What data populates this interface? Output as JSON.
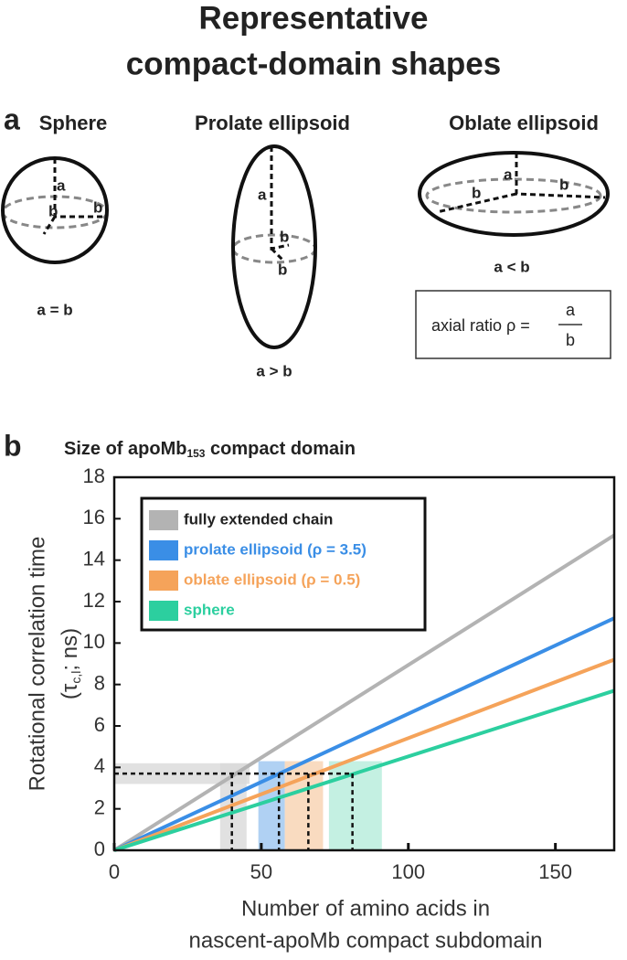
{
  "title": [
    "Representative",
    "compact-domain shapes"
  ],
  "panel_a": {
    "label": "a",
    "shapes": [
      {
        "name": "Sphere",
        "caption": "a = b"
      },
      {
        "name": "Prolate ellipsoid",
        "caption": "a > b"
      },
      {
        "name": "Oblate ellipsoid",
        "caption": "a < b"
      }
    ],
    "dimension_a": "a",
    "dimension_b": "b",
    "ratio_box": {
      "text": "axial ratio ρ =",
      "numerator": "a",
      "denominator": "b"
    }
  },
  "panel_b_label": "b",
  "chart_data": {
    "type": "line",
    "title": [
      "Size of apoMb",
      "153",
      " compact domain"
    ],
    "xlabel": [
      "Number of amino acids in",
      "nascent-apoMb compact subdomain"
    ],
    "ylabel": "Rotational correlation time",
    "ylabel_unit": [
      "(τ",
      "c,l",
      "; ns)"
    ],
    "x": [
      0,
      170
    ],
    "series": [
      {
        "name": "fully extended chain",
        "color": "#b3b3b3",
        "label_color": "#222222",
        "values": [
          0,
          15.2
        ]
      },
      {
        "name": "prolate ellipsoid (ρ = 3.5)",
        "color": "#3a8ee6",
        "label_color": "#3a8ee6",
        "values": [
          0,
          11.2
        ]
      },
      {
        "name": "oblate ellipsoid (ρ = 0.5)",
        "color": "#f5a35a",
        "label_color": "#f5a35a",
        "values": [
          0,
          9.2
        ]
      },
      {
        "name": "sphere",
        "color": "#2ccf9f",
        "label_color": "#2ccf9f",
        "values": [
          0,
          7.7
        ]
      }
    ],
    "bands": [
      {
        "x": [
          0,
          46
        ],
        "y": [
          3.2,
          4.2
        ],
        "color": "#d9d9d9"
      },
      {
        "x": [
          36,
          45
        ],
        "y": [
          0,
          4.2
        ],
        "color": "#d9d9d9"
      },
      {
        "x": [
          49,
          58
        ],
        "y": [
          0,
          4.3
        ],
        "color": "#9cc6f0"
      },
      {
        "x": [
          58,
          71
        ],
        "y": [
          0,
          4.3
        ],
        "color": "#f8d2b0"
      },
      {
        "x": [
          73,
          91
        ],
        "y": [
          0,
          4.3
        ],
        "color": "#b5ecdb"
      }
    ],
    "guides": {
      "y": 3.7,
      "x": [
        40,
        56,
        66,
        81
      ]
    },
    "xlim": [
      0,
      170
    ],
    "ylim": [
      0,
      18
    ],
    "xticks": [
      0,
      50,
      100,
      150
    ],
    "yticks": [
      0,
      2,
      4,
      6,
      8,
      10,
      12,
      14,
      16,
      18
    ],
    "legend": "upper left"
  }
}
